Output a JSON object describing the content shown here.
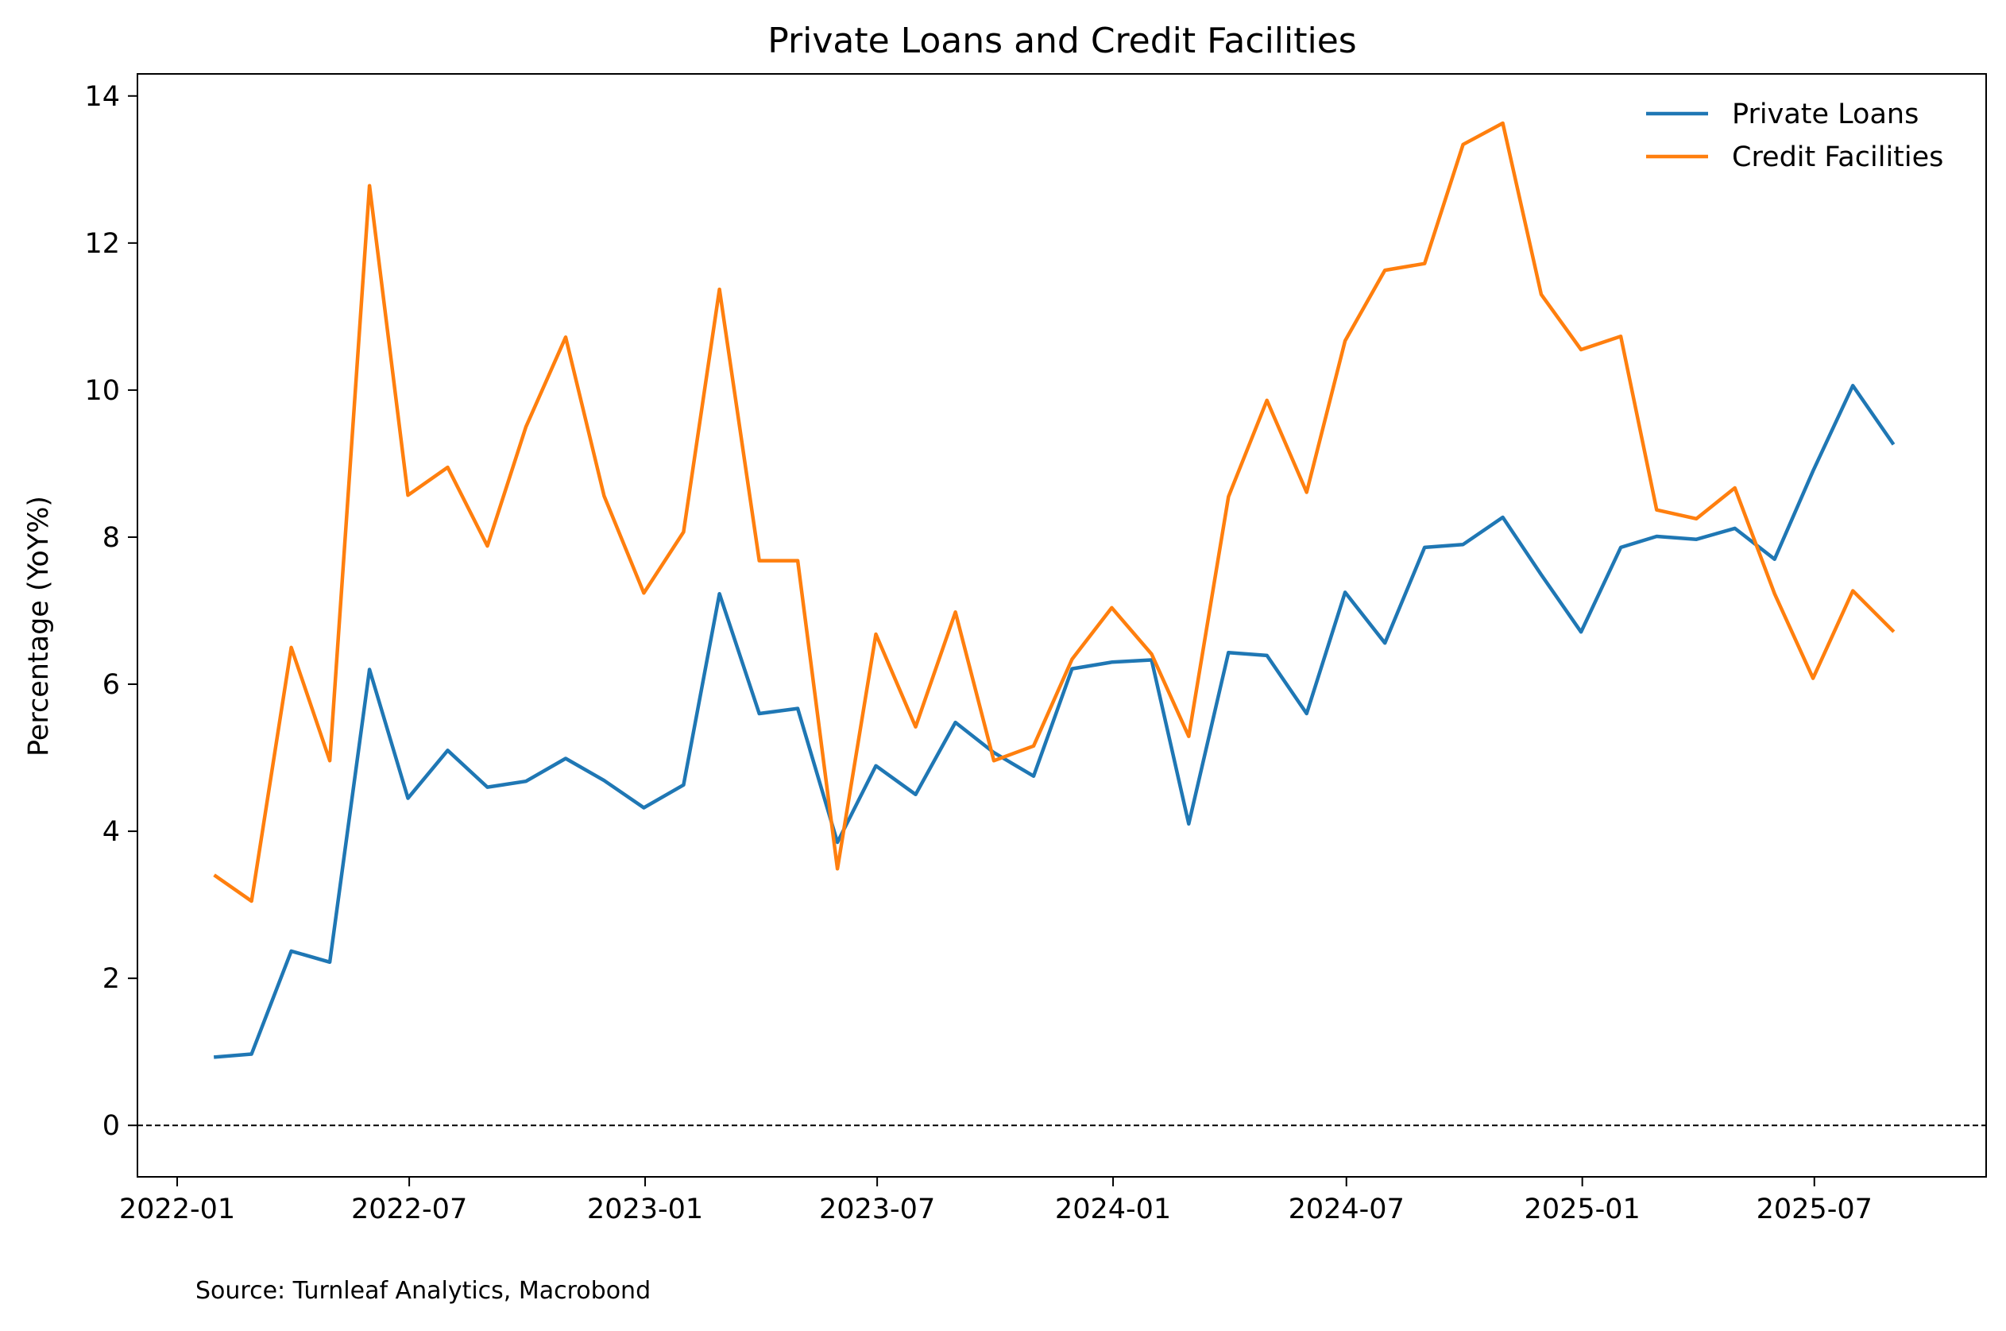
{
  "chart_data": {
    "type": "line",
    "title": "Private Loans and Credit Facilities",
    "xlabel": "",
    "ylabel": "Percentage (YoY%)",
    "source": "Source: Turnleaf Analytics, Macrobond",
    "x_ticks": [
      "2022-01",
      "2022-07",
      "2023-01",
      "2023-07",
      "2024-01",
      "2024-07",
      "2025-01",
      "2025-07"
    ],
    "y_ticks": [
      "0",
      "2",
      "4",
      "6",
      "8",
      "10",
      "12",
      "14"
    ],
    "ylim": [
      -0.7,
      14.3
    ],
    "xlim": [
      "2021-12-01",
      "2025-11-12"
    ],
    "grid": false,
    "legend_position": "top-right",
    "reference_line": {
      "y": 0,
      "style": "dashed",
      "color": "#000000"
    },
    "x": [
      "2022-01-31",
      "2022-02-28",
      "2022-03-31",
      "2022-04-30",
      "2022-05-31",
      "2022-06-30",
      "2022-07-31",
      "2022-08-31",
      "2022-09-30",
      "2022-10-31",
      "2022-11-30",
      "2022-12-31",
      "2023-01-31",
      "2023-02-28",
      "2023-03-31",
      "2023-04-30",
      "2023-05-31",
      "2023-06-30",
      "2023-07-31",
      "2023-08-31",
      "2023-09-30",
      "2023-10-31",
      "2023-11-30",
      "2023-12-31",
      "2024-01-31",
      "2024-02-29",
      "2024-03-31",
      "2024-04-30",
      "2024-05-31",
      "2024-06-30",
      "2024-07-31",
      "2024-08-31",
      "2024-09-30",
      "2024-10-31",
      "2024-11-30",
      "2024-12-31",
      "2025-01-31",
      "2025-02-28",
      "2025-03-31",
      "2025-04-30",
      "2025-05-31",
      "2025-06-30",
      "2025-07-31",
      "2025-08-31"
    ],
    "series": [
      {
        "name": "Private Loans",
        "color": "#1f77b4",
        "values": [
          0.93,
          0.97,
          2.37,
          2.22,
          6.2,
          4.45,
          5.1,
          4.6,
          4.68,
          4.99,
          4.69,
          4.32,
          4.63,
          7.23,
          5.6,
          5.67,
          3.85,
          4.89,
          4.5,
          5.48,
          5.07,
          4.75,
          6.21,
          6.3,
          6.33,
          4.1,
          6.43,
          6.39,
          5.6,
          7.25,
          6.56,
          7.86,
          7.9,
          8.27,
          7.49,
          6.71,
          7.86,
          8.01,
          7.97,
          8.12,
          7.7,
          8.9,
          10.06,
          9.28
        ]
      },
      {
        "name": "Credit Facilities",
        "color": "#ff7f0e",
        "values": [
          3.39,
          3.05,
          6.5,
          4.96,
          12.78,
          8.57,
          8.95,
          7.88,
          9.5,
          10.72,
          8.56,
          7.24,
          8.07,
          11.37,
          7.68,
          7.68,
          3.49,
          6.68,
          5.42,
          6.98,
          4.96,
          5.16,
          6.34,
          7.04,
          6.41,
          5.29,
          8.55,
          9.86,
          8.61,
          10.67,
          11.63,
          11.72,
          13.34,
          13.63,
          11.3,
          10.55,
          10.73,
          8.37,
          8.25,
          8.67,
          7.23,
          6.08,
          7.27,
          6.73
        ]
      }
    ]
  }
}
